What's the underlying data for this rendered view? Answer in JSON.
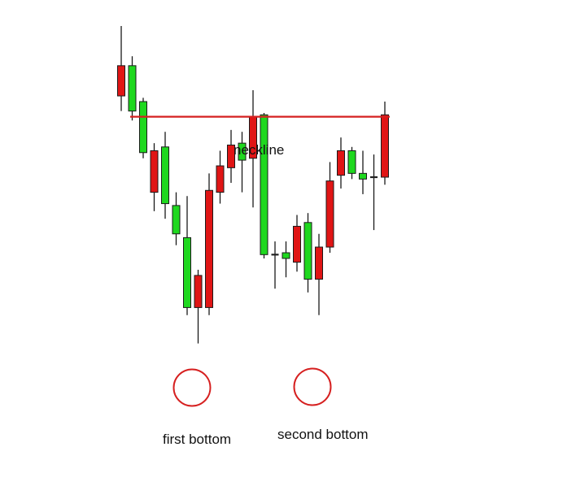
{
  "chart_data": {
    "type": "candlestick",
    "title": "",
    "xlabel": "",
    "ylabel": "",
    "ylim": [
      0,
      100
    ],
    "axes_visible": false,
    "grid": false,
    "neckline": {
      "label": "neckline",
      "value": 76,
      "color": "#d62020"
    },
    "annotations": [
      {
        "label": "first bottom",
        "candle_index": 6
      },
      {
        "label": "second bottom",
        "candle_index": 16
      }
    ],
    "colors": {
      "bullish": "#1fd81f",
      "bearish": "#e01515",
      "neutral": "#222222",
      "outline": "#1a1a1a",
      "circle": "#d62020"
    },
    "candles": [
      {
        "direction": "bearish",
        "open": 89.5,
        "close": 81.5,
        "high": 100,
        "low": 77.5
      },
      {
        "direction": "bullish",
        "open": 77.5,
        "close": 89.5,
        "high": 92,
        "low": 75
      },
      {
        "direction": "bullish",
        "open": 66.5,
        "close": 80,
        "high": 81,
        "low": 65
      },
      {
        "direction": "bearish",
        "open": 67,
        "close": 56,
        "high": 69,
        "low": 51
      },
      {
        "direction": "bullish",
        "open": 53,
        "close": 68,
        "high": 72,
        "low": 49
      },
      {
        "direction": "bullish",
        "open": 45,
        "close": 52.5,
        "high": 56,
        "low": 42
      },
      {
        "direction": "bullish",
        "open": 25.5,
        "close": 44,
        "high": 55,
        "low": 23.5
      },
      {
        "direction": "bearish",
        "open": 34,
        "close": 25.5,
        "high": 35.5,
        "low": 16
      },
      {
        "direction": "bearish",
        "open": 56.5,
        "close": 25.5,
        "high": 61,
        "low": 23.5
      },
      {
        "direction": "bearish",
        "open": 63,
        "close": 56,
        "high": 67,
        "low": 53
      },
      {
        "direction": "bearish",
        "open": 68.5,
        "close": 62.5,
        "high": 72.5,
        "low": 58.5
      },
      {
        "direction": "bullish",
        "open": 64.5,
        "close": 69,
        "high": 72,
        "low": 56
      },
      {
        "direction": "bearish",
        "open": 76,
        "close": 65,
        "high": 83,
        "low": 52
      },
      {
        "direction": "bullish",
        "open": 39.5,
        "close": 76.5,
        "high": 77,
        "low": 38.5
      },
      {
        "direction": "neutral",
        "open": 39.5,
        "close": 39.5,
        "high": 43,
        "low": 30.5
      },
      {
        "direction": "bullish",
        "open": 38.5,
        "close": 40,
        "high": 43,
        "low": 33.5
      },
      {
        "direction": "bearish",
        "open": 47,
        "close": 37.5,
        "high": 50,
        "low": 35
      },
      {
        "direction": "bullish",
        "open": 33,
        "close": 48,
        "high": 50.5,
        "low": 29.5
      },
      {
        "direction": "bearish",
        "open": 41.5,
        "close": 33,
        "high": 45,
        "low": 23.5
      },
      {
        "direction": "bearish",
        "open": 59,
        "close": 41.5,
        "high": 64,
        "low": 40
      },
      {
        "direction": "bearish",
        "open": 67,
        "close": 60.5,
        "high": 70.5,
        "low": 57
      },
      {
        "direction": "bullish",
        "open": 61,
        "close": 67,
        "high": 68,
        "low": 59.5
      },
      {
        "direction": "bullish",
        "open": 59.5,
        "close": 61,
        "high": 67,
        "low": 55.5
      },
      {
        "direction": "neutral",
        "open": 60,
        "close": 60,
        "high": 66,
        "low": 46
      },
      {
        "direction": "bearish",
        "open": 76.5,
        "close": 60,
        "high": 80,
        "low": 58
      }
    ]
  }
}
